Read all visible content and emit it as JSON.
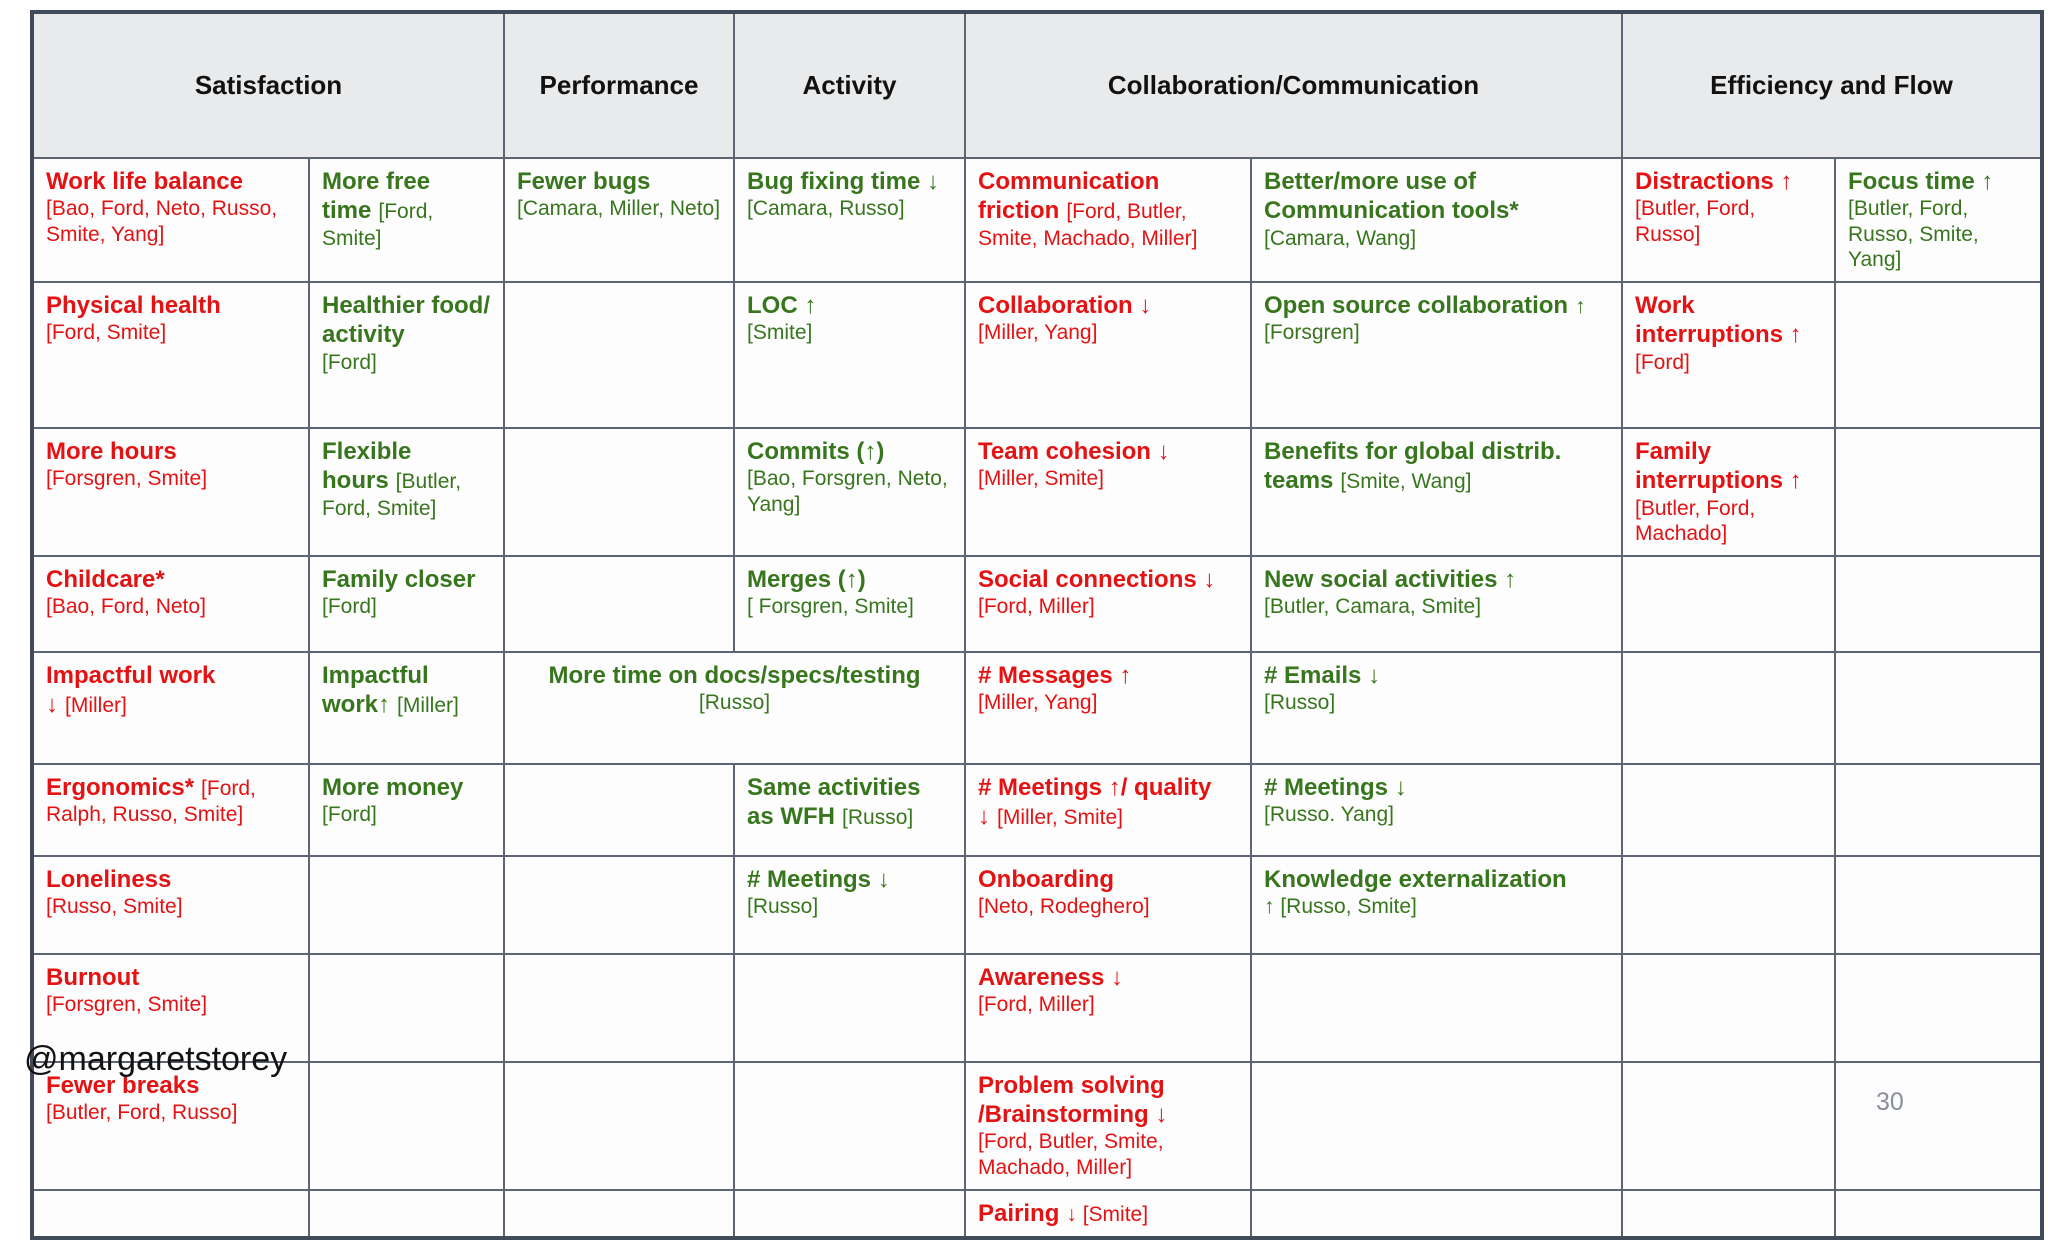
{
  "page": {
    "handle": "@margaretstorey",
    "page_number": "30"
  },
  "colors": {
    "negative_red": "#e41212",
    "positive_green": "#37761d",
    "header_background": "#e9eaeb",
    "table_border": "#5d6474",
    "page_number_gray": "#8a8f98"
  },
  "table": {
    "headers": [
      {
        "label": "Satisfaction",
        "span": 2
      },
      {
        "label": "Performance",
        "span": 1
      },
      {
        "label": "Activity",
        "span": 1
      },
      {
        "label": "Collaboration/Communication",
        "span": 2
      },
      {
        "label": "Efficiency and Flow",
        "span": 2
      }
    ],
    "rows": [
      {
        "cells": [
          {
            "title": "Work life balance",
            "cite": "[Bao, Ford, Neto, Russo, Smite, Yang]",
            "tone": "neg",
            "layout": "block"
          },
          {
            "title": "More free time",
            "cite": "[Ford, Smite]",
            "tone": "pos",
            "layout": "inline"
          },
          {
            "title": "Fewer bugs",
            "cite": "[Camara, Miller, Neto]",
            "tone": "pos",
            "layout": "block"
          },
          {
            "title": "Bug fixing time ↓",
            "cite": "[Camara, Russo]",
            "tone": "pos",
            "layout": "block"
          },
          {
            "title": "Communication friction",
            "cite": "[Ford, Butler, Smite, Machado, Miller]",
            "tone": "neg",
            "layout": "inline"
          },
          {
            "title": "Better/more use of Communication tools*",
            "cite": "[Camara, Wang]",
            "tone": "pos",
            "layout": "block"
          },
          {
            "title": "Distractions ↑",
            "cite": "[Butler, Ford, Russo]",
            "tone": "neg",
            "layout": "block"
          },
          {
            "title": "Focus time ↑",
            "cite": "[Butler, Ford, Russo, Smite, Yang]",
            "tone": "pos",
            "layout": "block"
          }
        ]
      },
      {
        "cells": [
          {
            "title": "Physical health",
            "cite": "[Ford, Smite]",
            "tone": "neg",
            "layout": "block"
          },
          {
            "title": "Healthier food/ activity",
            "cite": "[Ford]",
            "tone": "pos",
            "layout": "block"
          },
          {
            "empty": true
          },
          {
            "title": "LOC ↑",
            "cite": "[Smite]",
            "tone": "pos",
            "layout": "block"
          },
          {
            "title": "Collaboration ↓",
            "cite": "[Miller, Yang]",
            "tone": "neg",
            "layout": "block"
          },
          {
            "title": "Open source collaboration",
            "cite": "↑ [Forsgren]",
            "tone": "pos",
            "layout": "inline"
          },
          {
            "title": "Work interruptions ↑",
            "cite": "[Ford]",
            "tone": "neg",
            "layout": "block"
          },
          {
            "empty": true
          }
        ]
      },
      {
        "cells": [
          {
            "title": "More hours",
            "cite": "[Forsgren, Smite]",
            "tone": "neg",
            "layout": "block"
          },
          {
            "title": "Flexible hours",
            "cite": "[Butler, Ford, Smite]",
            "tone": "pos",
            "layout": "inline"
          },
          {
            "empty": true
          },
          {
            "title": "Commits (↑)",
            "cite": "[Bao, Forsgren, Neto, Yang]",
            "tone": "pos",
            "layout": "block"
          },
          {
            "title": "Team cohesion ↓",
            "cite": "[Miller, Smite]",
            "tone": "neg",
            "layout": "block"
          },
          {
            "title": "Benefits for global distrib. teams",
            "cite": "[Smite, Wang]",
            "tone": "pos",
            "layout": "inline"
          },
          {
            "title": "Family interruptions ↑",
            "cite": "[Butler, Ford, Machado]",
            "tone": "neg",
            "layout": "block"
          },
          {
            "empty": true
          }
        ]
      },
      {
        "cells": [
          {
            "title": "Childcare*",
            "cite": "[Bao, Ford, Neto]",
            "tone": "neg",
            "layout": "block"
          },
          {
            "title": "Family closer",
            "cite": "[Ford]",
            "tone": "pos",
            "layout": "block"
          },
          {
            "empty": true
          },
          {
            "title": "Merges (↑)",
            "cite": "[ Forsgren, Smite]",
            "tone": "pos",
            "layout": "block"
          },
          {
            "title": "Social connections ↓",
            "cite": "[Ford, Miller]",
            "tone": "neg",
            "layout": "block"
          },
          {
            "title": "New social activities ↑",
            "cite": "[Butler, Camara, Smite]",
            "tone": "pos",
            "layout": "block"
          },
          {
            "empty": true
          },
          {
            "empty": true
          }
        ]
      },
      {
        "cells": [
          {
            "title": "Impactful work ↓",
            "cite": "[Miller]",
            "tone": "neg",
            "layout": "inline"
          },
          {
            "title": "Impactful work↑",
            "cite": "[Miller]",
            "tone": "pos",
            "layout": "inline"
          },
          {
            "title": "More time on docs/specs/testing",
            "cite": "[Russo]",
            "tone": "pos",
            "layout": "block",
            "span": 2,
            "align": "center"
          },
          {
            "title": "# Messages ↑",
            "cite": "[Miller, Yang]",
            "tone": "neg",
            "layout": "block"
          },
          {
            "title": "# Emails ↓",
            "cite": "[Russo]",
            "tone": "pos",
            "layout": "block"
          },
          {
            "empty": true
          },
          {
            "empty": true
          }
        ]
      },
      {
        "cells": [
          {
            "title": "Ergonomics*",
            "cite": "[Ford, Ralph, Russo, Smite]",
            "tone": "neg",
            "layout": "inline"
          },
          {
            "title": "More money",
            "cite": "[Ford]",
            "tone": "pos",
            "layout": "block"
          },
          {
            "empty": true
          },
          {
            "title": "Same activities as WFH",
            "cite": "[Russo]",
            "tone": "pos",
            "layout": "inline"
          },
          {
            "title": "# Meetings ↑/ quality ↓",
            "cite": "[Miller, Smite]",
            "tone": "neg",
            "layout": "inline"
          },
          {
            "title": "# Meetings ↓",
            "cite": "[Russo. Yang]",
            "tone": "pos",
            "layout": "block"
          },
          {
            "empty": true
          },
          {
            "empty": true
          }
        ]
      },
      {
        "cells": [
          {
            "title": "Loneliness",
            "cite": "[Russo, Smite]",
            "tone": "neg",
            "layout": "block"
          },
          {
            "empty": true
          },
          {
            "empty": true
          },
          {
            "title": "# Meetings ↓",
            "cite": "[Russo]",
            "tone": "pos",
            "layout": "block"
          },
          {
            "title": "Onboarding",
            "cite": "[Neto, Rodeghero]",
            "tone": "neg",
            "layout": "block"
          },
          {
            "title": "Knowledge externalization",
            "cite": "↑ [Russo, Smite]",
            "tone": "pos",
            "layout": "block"
          },
          {
            "empty": true
          },
          {
            "empty": true
          }
        ]
      },
      {
        "cells": [
          {
            "title": "Burnout",
            "cite": "[Forsgren, Smite]",
            "tone": "neg",
            "layout": "block"
          },
          {
            "empty": true
          },
          {
            "empty": true
          },
          {
            "empty": true
          },
          {
            "title": "Awareness ↓",
            "cite": "[Ford, Miller]",
            "tone": "neg",
            "layout": "block"
          },
          {
            "empty": true
          },
          {
            "empty": true
          },
          {
            "empty": true
          }
        ]
      },
      {
        "cells": [
          {
            "title": "Fewer breaks",
            "cite": "[Butler, Ford, Russo]",
            "tone": "neg",
            "layout": "block"
          },
          {
            "empty": true
          },
          {
            "empty": true
          },
          {
            "empty": true
          },
          {
            "title": "Problem solving /Brainstorming ↓",
            "cite": "[Ford, Butler, Smite, Machado, Miller]",
            "tone": "neg",
            "layout": "block"
          },
          {
            "empty": true
          },
          {
            "empty": true
          },
          {
            "empty": true
          }
        ]
      },
      {
        "cells": [
          {
            "empty": true
          },
          {
            "empty": true
          },
          {
            "empty": true
          },
          {
            "empty": true
          },
          {
            "title": "Pairing",
            "cite": "↓ [Smite]",
            "tone": "neg",
            "layout": "inline"
          },
          {
            "empty": true
          },
          {
            "empty": true
          },
          {
            "empty": true
          }
        ]
      }
    ]
  }
}
